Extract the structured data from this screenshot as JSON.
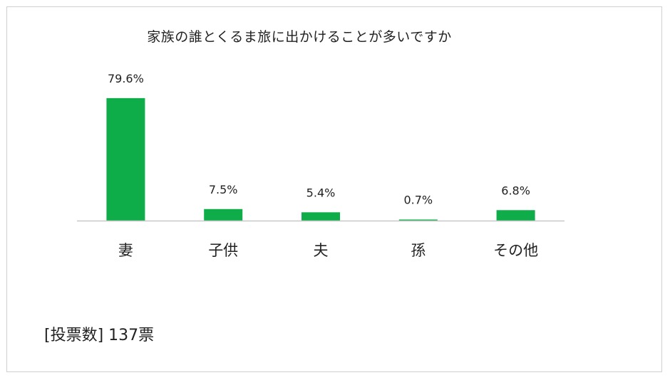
{
  "chart_data": {
    "type": "bar",
    "title": "家族の誰とくるま旅に出かけることが多いですか",
    "categories": [
      "妻",
      "子供",
      "夫",
      "孫",
      "その他"
    ],
    "values": [
      79.6,
      7.5,
      5.4,
      0.7,
      6.8
    ],
    "value_labels": [
      "79.6%",
      "7.5%",
      "5.4%",
      "0.7%",
      "6.8%"
    ],
    "unit": "%",
    "ylim": [
      0,
      80
    ],
    "grid": false,
    "legend": "none",
    "bar_color": "#0fad4a"
  },
  "note": "[投票数] 137票"
}
